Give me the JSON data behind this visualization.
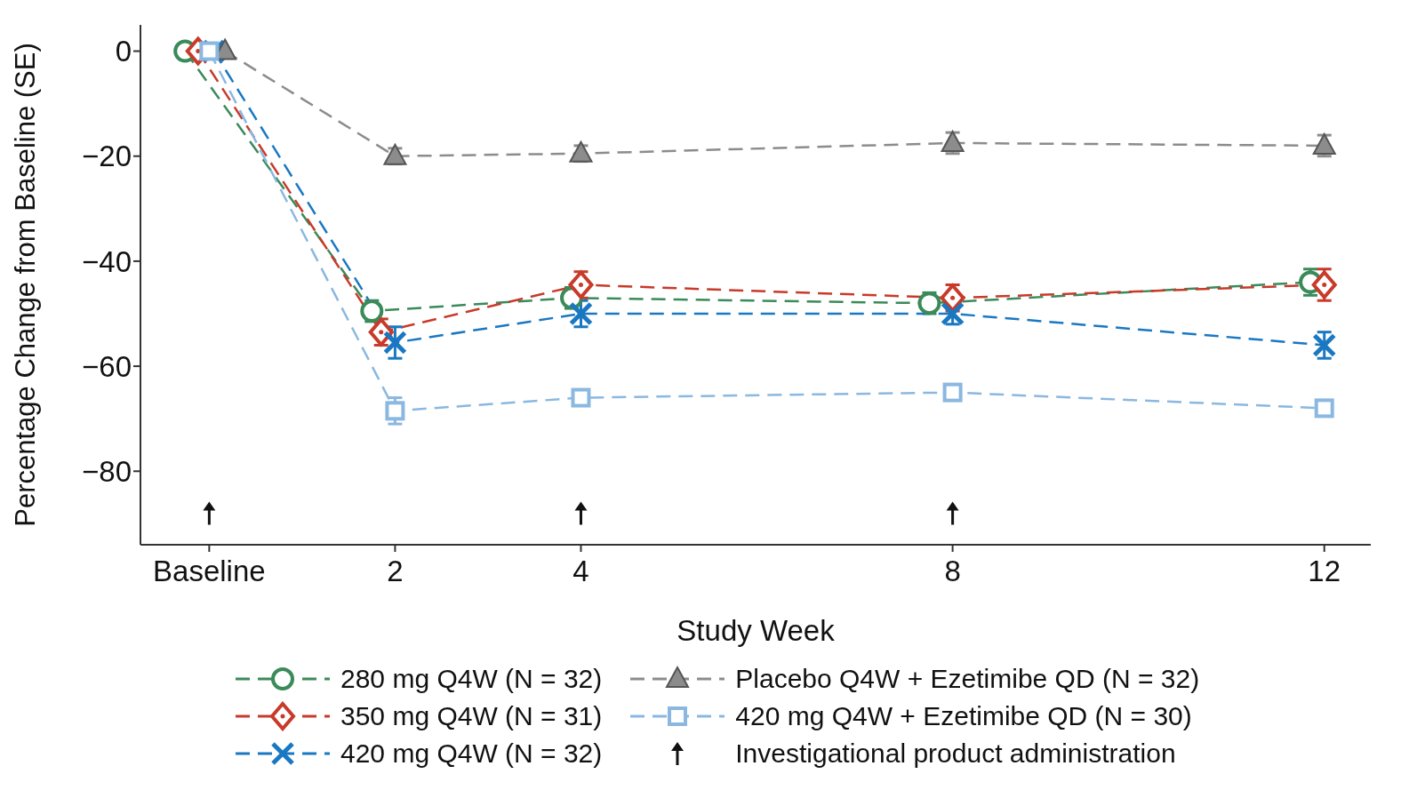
{
  "chart_data": {
    "type": "line",
    "xlabel": "Study Week",
    "ylabel": "Percentage Change from Baseline  (SE)",
    "xlim": [
      -0.74,
      12.5
    ],
    "xticks": [
      {
        "value": 0,
        "label": "Baseline"
      },
      2,
      4,
      8,
      12
    ],
    "ylim": [
      -94,
      5
    ],
    "yticks": [
      {
        "value": -80,
        "label": "−80"
      },
      {
        "value": -60,
        "label": "−60"
      },
      {
        "value": -40,
        "label": "−40"
      },
      {
        "value": -20,
        "label": "−20"
      },
      0
    ],
    "grid": false,
    "legend": "bottom",
    "line_style": "dashed",
    "series": [
      {
        "name": "280 mg Q4W (N = 32)",
        "color": "#3a8a5a",
        "marker": "circle",
        "x": [
          -0.26,
          1.75,
          3.9,
          7.75,
          11.85
        ],
        "values": [
          0,
          -49.5,
          -47,
          -48,
          -44
        ],
        "errors": [
          null,
          2,
          2,
          2,
          2.5
        ]
      },
      {
        "name": "350 mg Q4W (N = 31)",
        "color": "#c83a2a",
        "marker": "diamond",
        "x": [
          -0.12,
          1.85,
          4,
          8,
          12
        ],
        "values": [
          0,
          -53.5,
          -44.5,
          -47,
          -44.5
        ],
        "errors": [
          null,
          2.5,
          2.5,
          2.5,
          3
        ]
      },
      {
        "name": "420 mg Q4W (N = 32)",
        "color": "#1a78c2",
        "marker": "cross",
        "x": [
          0.05,
          2,
          4,
          8,
          12
        ],
        "values": [
          0,
          -55.5,
          -50,
          -50,
          -56
        ],
        "errors": [
          null,
          3,
          2.5,
          2,
          2.5
        ]
      },
      {
        "name": "Placebo Q4W + Ezetimibe QD (N = 32)",
        "color": "#8c8c8c",
        "marker": "triangle",
        "x": [
          0.17,
          2,
          4,
          8,
          12
        ],
        "values": [
          0,
          -20,
          -19.5,
          -17.5,
          -18
        ],
        "errors": [
          null,
          1.5,
          1.5,
          2,
          2
        ]
      },
      {
        "name": "420 mg Q4W + Ezetimibe QD (N = 30)",
        "color": "#8ab8e0",
        "marker": "square",
        "x": [
          0,
          2,
          4,
          8,
          12
        ],
        "values": [
          0,
          -68.5,
          -66,
          -65,
          -68
        ],
        "errors": [
          null,
          2.5,
          1.5,
          1.5,
          1.5
        ]
      },
      {
        "name": "Investigational product administration",
        "type": "scatter",
        "color": "#111111",
        "x": [
          0,
          4,
          8
        ],
        "values": [
          -88,
          -88,
          -88
        ]
      }
    ]
  }
}
